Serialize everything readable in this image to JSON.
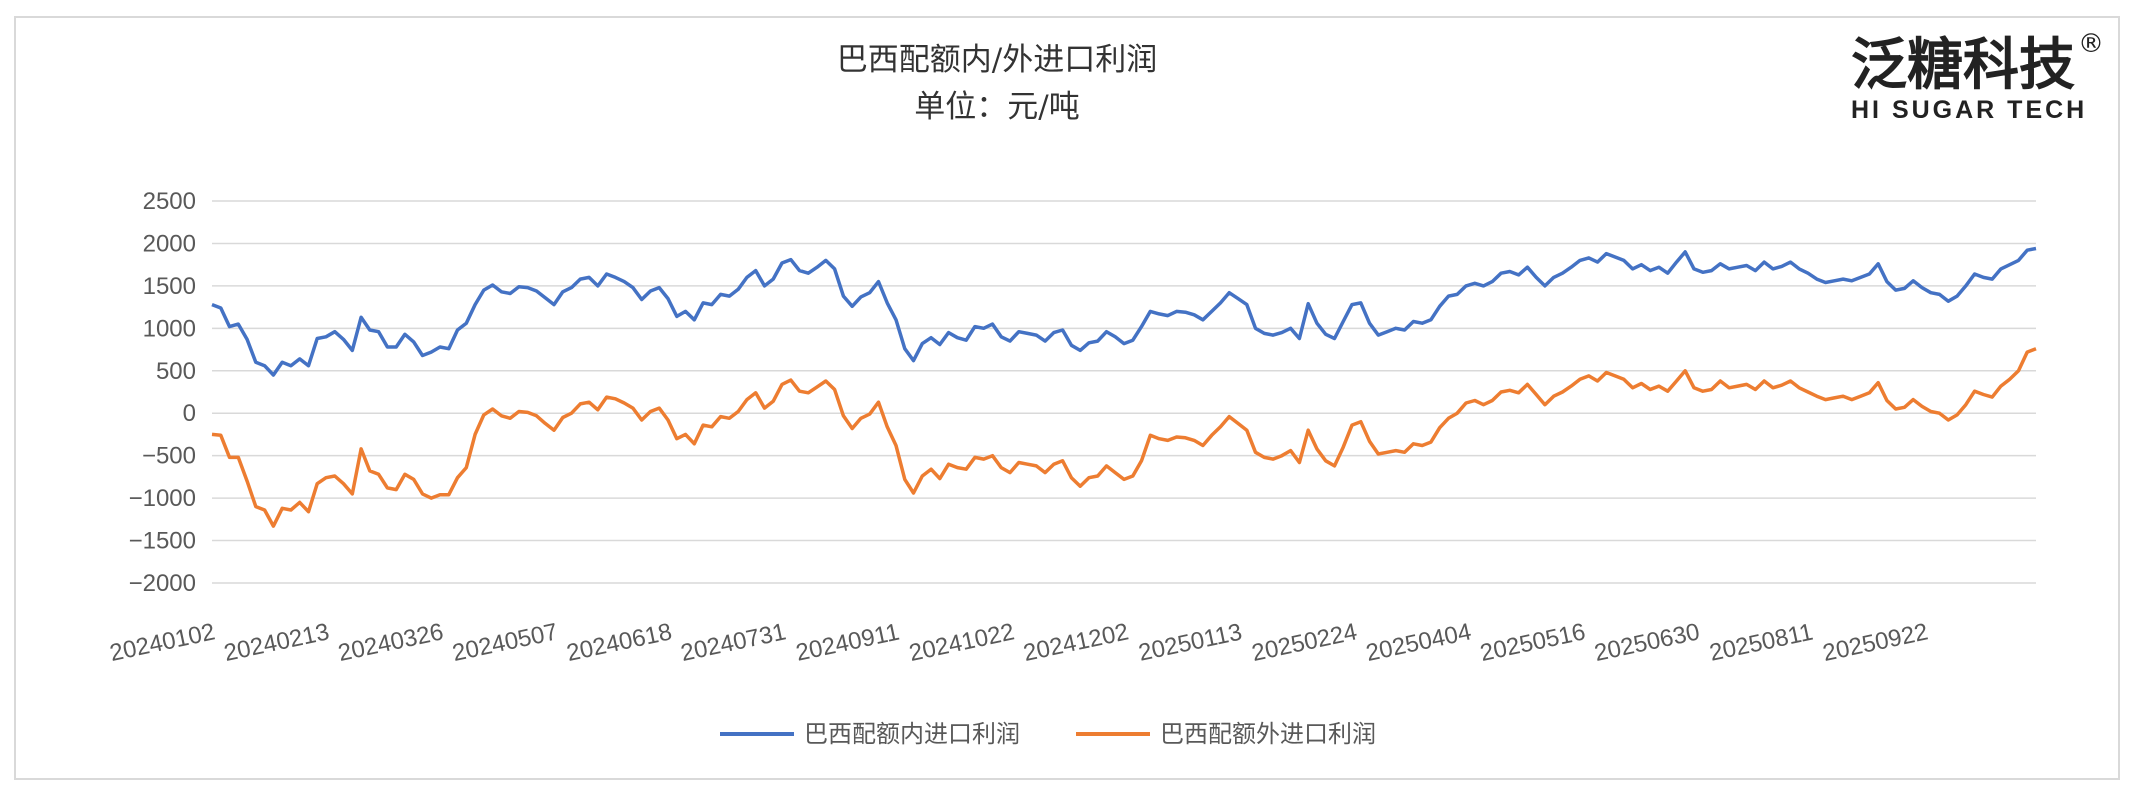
{
  "logo": {
    "main": "泛糖科技",
    "sub": "HI SUGAR TECH",
    "registered": "®"
  },
  "colors": {
    "series1": "#4472C4",
    "series2": "#ED7D31",
    "grid": "#d9d9d9",
    "tick": "#595959"
  },
  "chart_data": {
    "type": "line",
    "title": "巴西配额内/外进口利润",
    "subtitle": "单位：元/吨",
    "ylim": [
      -2000,
      2500
    ],
    "yticks": [
      "2500",
      "2000",
      "1500",
      "1000",
      "500",
      "0",
      "−500",
      "−1000",
      "−1500",
      "−2000"
    ],
    "ytick_values": [
      2500,
      2000,
      1500,
      1000,
      500,
      0,
      -500,
      -1000,
      -1500,
      -2000
    ],
    "xticks": [
      "20240102",
      "20240213",
      "20240326",
      "20240507",
      "20240618",
      "20240731",
      "20240911",
      "20241022",
      "20241202",
      "20250113",
      "20250224",
      "20250404",
      "20250516",
      "20250630",
      "20250811",
      "20250922"
    ],
    "grid": true,
    "legend_position": "bottom",
    "series": [
      {
        "name": "巴西配额内进口利润",
        "values": [
          1280,
          1240,
          1020,
          1050,
          870,
          600,
          560,
          450,
          600,
          560,
          640,
          560,
          880,
          900,
          960,
          870,
          740,
          1130,
          980,
          960,
          780,
          780,
          930,
          840,
          680,
          720,
          780,
          760,
          980,
          1060,
          1280,
          1450,
          1510,
          1430,
          1410,
          1490,
          1480,
          1440,
          1360,
          1280,
          1430,
          1480,
          1580,
          1600,
          1500,
          1640,
          1600,
          1550,
          1480,
          1340,
          1440,
          1480,
          1350,
          1140,
          1200,
          1100,
          1300,
          1280,
          1400,
          1380,
          1460,
          1600,
          1680,
          1500,
          1580,
          1770,
          1810,
          1680,
          1650,
          1720,
          1800,
          1700,
          1380,
          1260,
          1370,
          1420,
          1550,
          1300,
          1100,
          760,
          620,
          820,
          890,
          810,
          950,
          890,
          860,
          1020,
          1000,
          1050,
          900,
          850,
          960,
          940,
          920,
          850,
          950,
          980,
          800,
          740,
          830,
          850,
          960,
          900,
          820,
          860,
          1020,
          1200,
          1170,
          1150,
          1200,
          1190,
          1160,
          1100,
          1200,
          1300,
          1420,
          1350,
          1280,
          1000,
          940,
          920,
          950,
          1000,
          880,
          1290,
          1060,
          930,
          880,
          1080,
          1280,
          1300,
          1060,
          920,
          960,
          1000,
          980,
          1080,
          1060,
          1100,
          1260,
          1380,
          1400,
          1500,
          1530,
          1500,
          1550,
          1650,
          1670,
          1630,
          1720,
          1600,
          1500,
          1600,
          1650,
          1720,
          1800,
          1830,
          1780,
          1880,
          1840,
          1800,
          1700,
          1750,
          1680,
          1720,
          1650,
          1780,
          1900,
          1700,
          1660,
          1680,
          1760,
          1700,
          1720,
          1740,
          1680,
          1780,
          1700,
          1730,
          1780,
          1700,
          1650,
          1580,
          1540,
          1560,
          1580,
          1560,
          1600,
          1640,
          1760,
          1550,
          1450,
          1470,
          1560,
          1480,
          1420,
          1400,
          1320,
          1380,
          1500,
          1640,
          1600,
          1580,
          1700,
          1750,
          1800,
          1920,
          1940
        ]
      },
      {
        "name": "巴西配额外进口利润",
        "values": [
          -250,
          -260,
          -520,
          -520,
          -800,
          -1100,
          -1140,
          -1330,
          -1120,
          -1140,
          -1050,
          -1160,
          -830,
          -760,
          -740,
          -830,
          -950,
          -420,
          -680,
          -720,
          -880,
          -900,
          -720,
          -780,
          -950,
          -1000,
          -960,
          -960,
          -760,
          -640,
          -250,
          -20,
          50,
          -30,
          -60,
          20,
          10,
          -30,
          -120,
          -200,
          -50,
          0,
          110,
          130,
          40,
          190,
          170,
          120,
          60,
          -80,
          20,
          60,
          -80,
          -300,
          -250,
          -360,
          -140,
          -160,
          -40,
          -60,
          20,
          160,
          240,
          60,
          140,
          340,
          390,
          260,
          240,
          310,
          380,
          280,
          -30,
          -180,
          -60,
          -10,
          130,
          -160,
          -380,
          -780,
          -940,
          -740,
          -660,
          -770,
          -600,
          -640,
          -660,
          -520,
          -540,
          -500,
          -640,
          -700,
          -580,
          -600,
          -620,
          -700,
          -600,
          -560,
          -760,
          -860,
          -760,
          -740,
          -620,
          -700,
          -780,
          -740,
          -560,
          -260,
          -300,
          -320,
          -280,
          -290,
          -320,
          -380,
          -260,
          -160,
          -40,
          -120,
          -200,
          -460,
          -520,
          -540,
          -500,
          -440,
          -580,
          -200,
          -420,
          -560,
          -620,
          -400,
          -140,
          -100,
          -330,
          -480,
          -460,
          -440,
          -460,
          -360,
          -380,
          -340,
          -170,
          -60,
          0,
          120,
          150,
          100,
          150,
          250,
          270,
          240,
          340,
          220,
          100,
          200,
          250,
          320,
          400,
          440,
          380,
          480,
          440,
          400,
          300,
          350,
          280,
          320,
          260,
          380,
          500,
          300,
          260,
          280,
          380,
          300,
          320,
          340,
          280,
          380,
          300,
          330,
          380,
          300,
          250,
          200,
          160,
          180,
          200,
          160,
          200,
          240,
          360,
          150,
          50,
          70,
          160,
          80,
          20,
          0,
          -80,
          -20,
          100,
          260,
          220,
          190,
          320,
          400,
          500,
          720,
          760
        ]
      }
    ]
  }
}
